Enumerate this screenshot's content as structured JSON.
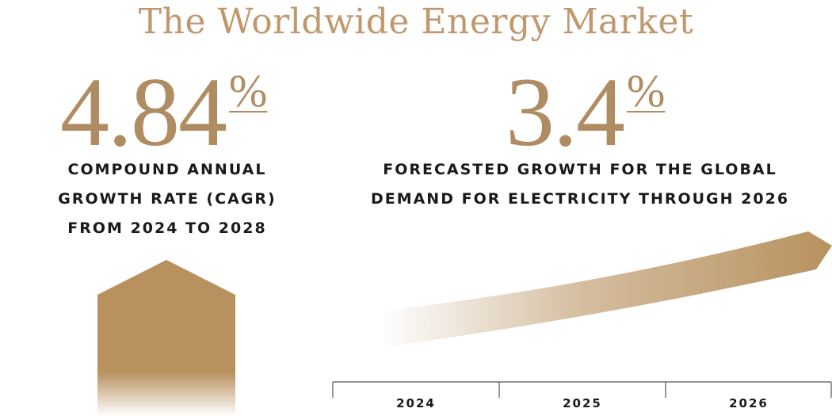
{
  "title": "The Worldwide Energy Market",
  "stats": [
    {
      "value": "4.84",
      "unit": "%",
      "description_lines": [
        "COMPOUND ANNUAL",
        "GROWTH RATE (CAGR)",
        "FROM 2024 TO 2028"
      ]
    },
    {
      "value": "3.4",
      "unit": "%",
      "description_lines": [
        "FORECASTED GROWTH FOR THE GLOBAL",
        "DEMAND FOR ELECTRICITY THROUGH 2026"
      ]
    }
  ],
  "timeline": {
    "years": [
      "2024",
      "2025",
      "2026"
    ]
  },
  "colors": {
    "accent": "#b8915f",
    "title": "#c0986d",
    "text": "#1a1a1a",
    "axis": "#555555"
  }
}
